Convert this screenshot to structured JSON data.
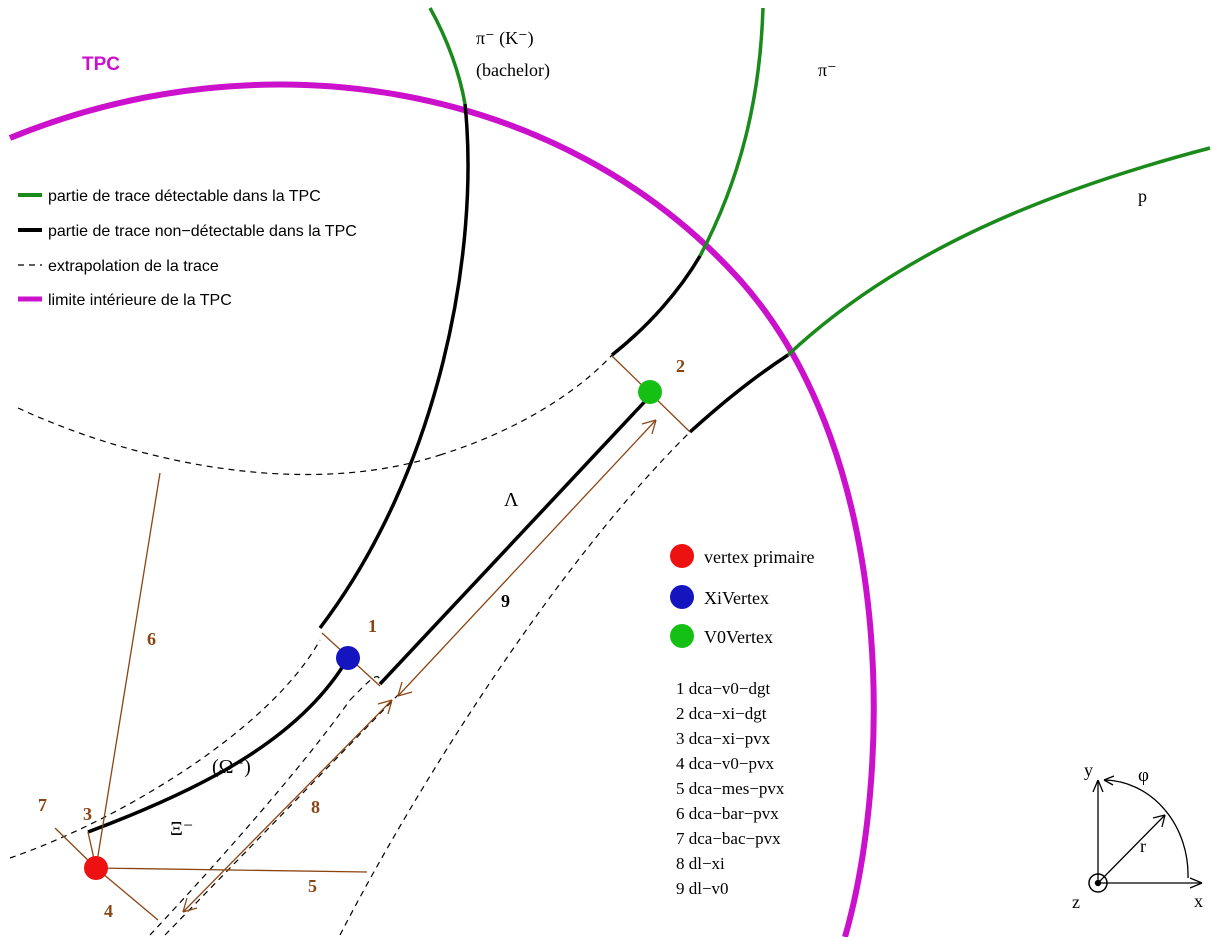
{
  "labels": {
    "tpc": "TPC",
    "pi_minus_k": "π⁻ (K⁻)",
    "bachelor": "(bachelor)",
    "pi_minus": "π⁻",
    "proton": "p",
    "lambda": "Λ",
    "xi_minus": "Ξ⁻",
    "omega_minus": "(Ω⁻)"
  },
  "legend_lines": [
    {
      "text": "partie de trace détectable dans la TPC",
      "style": "green"
    },
    {
      "text": "partie de trace non−détectable dans la TPC",
      "style": "black"
    },
    {
      "text": "extrapolation de la trace",
      "style": "dashed"
    },
    {
      "text": "limite intérieure de la TPC",
      "style": "magenta"
    }
  ],
  "legend_vertices": [
    {
      "text": "vertex primaire",
      "color": "#ee1111"
    },
    {
      "text": "XiVertex",
      "color": "#1515c0"
    },
    {
      "text": "V0Vertex",
      "color": "#15c015"
    }
  ],
  "markers": [
    "1",
    "2",
    "3",
    "4",
    "5",
    "6",
    "7",
    "8",
    "9"
  ],
  "definitions": [
    "1  dca−v0−dgt",
    "2  dca−xi−dgt",
    "3  dca−xi−pvx",
    "4  dca−v0−pvx",
    "5  dca−mes−pvx",
    "6  dca−bar−pvx",
    "7  dca−bac−pvx",
    "8  dl−xi",
    "9  dl−v0"
  ],
  "axes": {
    "y": "y",
    "phi": "φ",
    "r": "r",
    "z": "z",
    "x": "x"
  },
  "colors": {
    "detectable": "#1a8a1a",
    "non_detectable": "#000000",
    "tpc_boundary": "#cc11cc",
    "measure": "#8b4513",
    "tpc_label": "#cc11cc"
  }
}
